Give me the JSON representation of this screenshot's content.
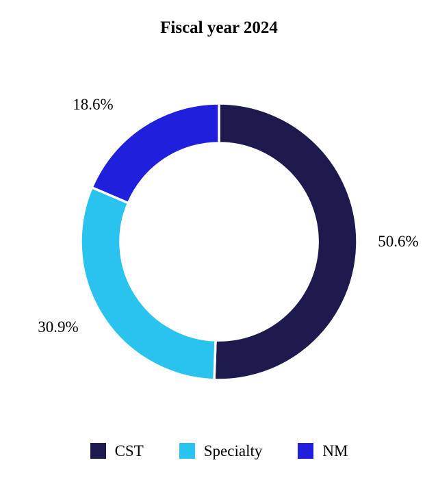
{
  "title": "Fiscal year 2024",
  "chart_data": {
    "type": "pie",
    "subtype": "donut",
    "title": "Fiscal year 2024",
    "series": [
      {
        "label": "CST",
        "value": 50.6,
        "display": "50.6%",
        "color": "#1D1A4D"
      },
      {
        "label": "Specialty",
        "value": 30.9,
        "display": "30.9%",
        "color": "#29C3EE"
      },
      {
        "label": "NM",
        "value": 18.6,
        "display": "18.6%",
        "color": "#1F1FDC"
      }
    ],
    "start_angle_deg": 0,
    "direction": "clockwise",
    "inner_radius_ratio": 0.715,
    "gap_color": "#ffffff",
    "labels_outside": true,
    "legend_position": "bottom"
  }
}
